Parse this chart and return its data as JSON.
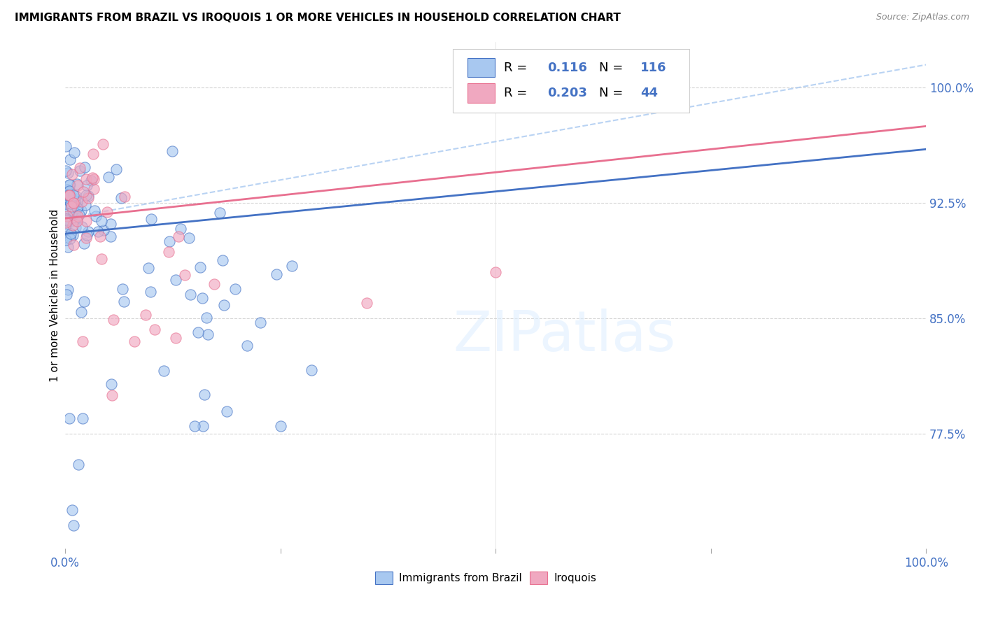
{
  "title": "IMMIGRANTS FROM BRAZIL VS IROQUOIS 1 OR MORE VEHICLES IN HOUSEHOLD CORRELATION CHART",
  "source": "Source: ZipAtlas.com",
  "ylabel": "1 or more Vehicles in Household",
  "legend_label1": "Immigrants from Brazil",
  "legend_label2": "Iroquois",
  "r1": "0.116",
  "n1": "116",
  "r2": "0.203",
  "n2": "44",
  "color_blue": "#a8c8f0",
  "color_pink": "#f0a8c0",
  "color_blue_line": "#4472c4",
  "color_pink_line": "#e87090",
  "color_blue_dashed": "#a8c8f0",
  "yticks": [
    77.5,
    85.0,
    92.5,
    100.0
  ],
  "ytick_labels": [
    "77.5%",
    "85.0%",
    "92.5%",
    "100.0%"
  ],
  "xlim": [
    0,
    100
  ],
  "ylim": [
    70,
    103
  ],
  "blue_line": [
    90.5,
    96.0
  ],
  "pink_line": [
    91.5,
    97.5
  ],
  "dashed_line": [
    91.5,
    101.5
  ],
  "watermark": "ZIPatlas"
}
